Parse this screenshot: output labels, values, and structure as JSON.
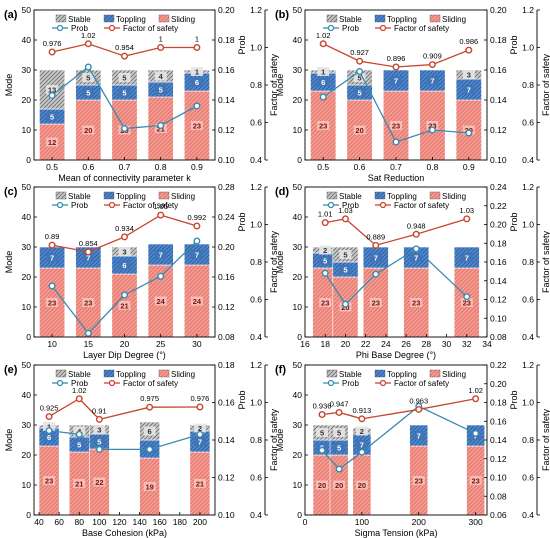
{
  "chart_data": [
    {
      "type": "bar",
      "panel": "(a)",
      "xlabel": "Mean of connectivity parameter k",
      "ylabel": "Mode",
      "ylabel_right1": "Prob",
      "ylabel_right2": "Factor of safety",
      "categories": [
        0.5,
        0.6,
        0.7,
        0.8,
        0.9
      ],
      "xlim": [
        0.45,
        0.95
      ],
      "xticks": [
        0.5,
        0.6,
        0.7,
        0.8,
        0.9
      ],
      "ylim": [
        0,
        50
      ],
      "yticks": [
        0,
        10,
        20,
        30,
        40,
        50
      ],
      "prob_lim": [
        0.1,
        0.2
      ],
      "prob_ticks": [
        0.1,
        0.12,
        0.14,
        0.16,
        0.18,
        0.2
      ],
      "fos_lim": [
        0.4,
        1.2
      ],
      "fos_ticks": [
        0.4,
        0.6,
        0.8,
        1.0,
        1.2
      ],
      "bar_half_width": 0.035,
      "series": [
        {
          "name": "Sliding",
          "values": [
            12,
            20,
            20,
            21,
            23
          ]
        },
        {
          "name": "Toppling",
          "values": [
            5,
            5,
            5,
            5,
            6
          ]
        },
        {
          "name": "Stable",
          "values": [
            13,
            5,
            5,
            4,
            1
          ]
        }
      ],
      "prob": [
        0.143,
        0.162,
        0.121,
        0.123,
        0.136
      ],
      "fos": [
        0.976,
        1.02,
        0.954,
        1,
        1
      ],
      "fos_labels": [
        "0.976",
        "1.02",
        "0.954",
        "1",
        "1"
      ]
    },
    {
      "type": "bar",
      "panel": "(b)",
      "xlabel": "Sat Reduction",
      "ylabel": "Mode",
      "ylabel_right1": "Prob",
      "ylabel_right2": "Factor of safety",
      "categories": [
        0.5,
        0.6,
        0.7,
        0.8,
        0.9
      ],
      "xlim": [
        0.45,
        0.95
      ],
      "xticks": [
        0.5,
        0.6,
        0.7,
        0.8,
        0.9
      ],
      "ylim": [
        0,
        50
      ],
      "yticks": [
        0,
        10,
        20,
        30,
        40,
        50
      ],
      "prob_lim": [
        0.1,
        0.2
      ],
      "prob_ticks": [
        0.1,
        0.12,
        0.14,
        0.16,
        0.18,
        0.2
      ],
      "fos_lim": [
        0.4,
        1.2
      ],
      "fos_ticks": [
        0.4,
        0.6,
        0.8,
        1.0,
        1.2
      ],
      "bar_half_width": 0.035,
      "series": [
        {
          "name": "Sliding",
          "values": [
            23,
            20,
            23,
            23,
            20
          ]
        },
        {
          "name": "Toppling",
          "values": [
            6,
            5,
            7,
            7,
            7
          ]
        },
        {
          "name": "Stable",
          "values": [
            1,
            5,
            0,
            0,
            3
          ]
        }
      ],
      "prob": [
        0.142,
        0.159,
        0.112,
        0.12,
        0.118
      ],
      "fos": [
        1.02,
        0.927,
        0.896,
        0.909,
        0.986
      ],
      "fos_labels": [
        "1.02",
        "0.927",
        "0.896",
        "0.909",
        "0.986"
      ]
    },
    {
      "type": "bar",
      "panel": "(c)",
      "xlabel": "Layer Dip Degree (°)",
      "ylabel": "Mode",
      "ylabel_right1": "Prob",
      "ylabel_right2": "Factor of safety",
      "categories": [
        10,
        15,
        20,
        25,
        30
      ],
      "xlim": [
        7.5,
        32.5
      ],
      "xticks": [
        10,
        15,
        20,
        25,
        30
      ],
      "ylim": [
        0,
        50
      ],
      "yticks": [
        0,
        10,
        20,
        30,
        40,
        50
      ],
      "prob_lim": [
        0.08,
        0.28
      ],
      "prob_ticks": [
        0.08,
        0.12,
        0.16,
        0.2,
        0.24,
        0.28
      ],
      "fos_lim": [
        0.4,
        1.2
      ],
      "fos_ticks": [
        0.4,
        0.6,
        0.8,
        1.0,
        1.2
      ],
      "bar_half_width": 1.75,
      "series": [
        {
          "name": "Sliding",
          "values": [
            23,
            23,
            21,
            24,
            24
          ]
        },
        {
          "name": "Toppling",
          "values": [
            7,
            7,
            6,
            7,
            7
          ]
        },
        {
          "name": "Stable",
          "values": [
            0,
            0,
            3,
            0,
            0
          ]
        }
      ],
      "prob": [
        0.148,
        0.085,
        0.136,
        0.161,
        0.208
      ],
      "fos": [
        0.89,
        0.854,
        0.934,
        1.05,
        0.992
      ],
      "fos_labels": [
        "0.89",
        "0.854",
        "0.934",
        "1.05",
        "0.992"
      ]
    },
    {
      "type": "bar",
      "panel": "(d)",
      "xlabel": "Phi Base Degree (°)",
      "ylabel": "Mode",
      "ylabel_right1": "Prob",
      "ylabel_right2": "Factor of safety",
      "categories": [
        18,
        20,
        23,
        27,
        32
      ],
      "xlim": [
        16,
        34
      ],
      "xticks": [
        16,
        18,
        20,
        22,
        24,
        26,
        28,
        30,
        32,
        34
      ],
      "ylim": [
        0,
        50
      ],
      "yticks": [
        0,
        10,
        20,
        30,
        40,
        50
      ],
      "prob_lim": [
        0.08,
        0.24
      ],
      "prob_ticks": [
        0.08,
        0.1,
        0.12,
        0.14,
        0.16,
        0.18,
        0.2,
        0.22,
        0.24
      ],
      "fos_lim": [
        0.4,
        1.2
      ],
      "fos_ticks": [
        0.4,
        0.6,
        0.8,
        1.0,
        1.2
      ],
      "bar_half_width": 1.25,
      "series": [
        {
          "name": "Sliding",
          "values": [
            23,
            20,
            23,
            23,
            23
          ]
        },
        {
          "name": "Toppling",
          "values": [
            5,
            5,
            7,
            7,
            7
          ]
        },
        {
          "name": "Stable",
          "values": [
            2,
            5,
            0,
            0,
            0
          ]
        }
      ],
      "prob": [
        0.148,
        0.115,
        0.147,
        0.174,
        0.123
      ],
      "fos": [
        1.01,
        1.03,
        0.889,
        0.948,
        1.03
      ],
      "fos_labels": [
        "1.01",
        "1.03",
        "0.889",
        "0.948",
        "1.03"
      ]
    },
    {
      "type": "bar",
      "panel": "(e)",
      "xlabel": "Base Cohesion (kPa)",
      "ylabel": "Mode",
      "ylabel_right1": "Prob",
      "ylabel_right2": "Factor of safety",
      "categories": [
        50,
        80,
        100,
        150,
        200
      ],
      "xlim": [
        35,
        215
      ],
      "xticks": [
        40,
        60,
        80,
        100,
        120,
        140,
        160,
        180,
        200
      ],
      "ylim": [
        0,
        50
      ],
      "yticks": [
        0,
        10,
        20,
        30,
        40,
        50
      ],
      "prob_lim": [
        0.1,
        0.18
      ],
      "prob_ticks": [
        0.1,
        0.12,
        0.14,
        0.16,
        0.18
      ],
      "fos_lim": [
        0.4,
        1.2
      ],
      "fos_ticks": [
        0.4,
        0.6,
        0.8,
        1.0,
        1.2
      ],
      "bar_half_width": 10,
      "series": [
        {
          "name": "Sliding",
          "values": [
            23,
            21,
            22,
            19,
            21
          ]
        },
        {
          "name": "Toppling",
          "values": [
            6,
            5,
            5,
            6,
            7
          ]
        },
        {
          "name": "Stable",
          "values": [
            1,
            4,
            3,
            6,
            2
          ]
        }
      ],
      "prob": [
        0.145,
        0.143,
        0.135,
        0.135,
        0.143
      ],
      "fos": [
        0.925,
        1.02,
        0.91,
        0.975,
        0.976
      ],
      "fos_labels": [
        "0.925",
        "1.02",
        "0.91",
        "0.975",
        "0.976"
      ]
    },
    {
      "type": "bar",
      "panel": "(f)",
      "xlabel": "Sigma Tension (kPa)",
      "ylabel": "Mode",
      "ylabel_right1": "Prob",
      "ylabel_right2": "Factor of safety",
      "categories": [
        30,
        60,
        100,
        200,
        300
      ],
      "xlim": [
        0,
        320
      ],
      "xticks": [
        0,
        100,
        200,
        300
      ],
      "ylim": [
        0,
        50
      ],
      "yticks": [
        0,
        10,
        20,
        30,
        40,
        50
      ],
      "prob_lim": [
        0.06,
        0.22
      ],
      "prob_ticks": [
        0.06,
        0.08,
        0.1,
        0.12,
        0.14,
        0.16,
        0.18,
        0.2,
        0.22
      ],
      "fos_lim": [
        0.4,
        1.2
      ],
      "fos_ticks": [
        0.4,
        0.6,
        0.8,
        1.0,
        1.2
      ],
      "bar_half_width": 16,
      "series": [
        {
          "name": "Sliding",
          "values": [
            20,
            20,
            20,
            23,
            23
          ]
        },
        {
          "name": "Toppling",
          "values": [
            5,
            5,
            7,
            7,
            7
          ]
        },
        {
          "name": "Stable",
          "values": [
            5,
            5,
            2,
            0,
            0
          ]
        }
      ],
      "prob": [
        0.129,
        0.109,
        0.127,
        0.176,
        0.147
      ],
      "fos": [
        0.936,
        0.947,
        0.913,
        0.963,
        1.02
      ],
      "fos_labels": [
        "0.936",
        "0.947",
        "0.913",
        "0.963",
        "1.02"
      ]
    }
  ],
  "legend": {
    "stable": "Stable",
    "toppling": "Toppling",
    "sliding": "Sliding",
    "prob": "Prob",
    "fos": "Factor of safety"
  },
  "colors": {
    "stable_fill": "#c9c9c9",
    "stable_hatch": "#6f6f6f",
    "toppling_fill": "#4f87cc",
    "toppling_hatch": "#2a5a9a",
    "sliding_fill": "#ec7e73",
    "sliding_hatch": "#d9d9d9",
    "prob_line": "#3a8bb0",
    "fos_line": "#c8462f",
    "axis": "#000000"
  }
}
